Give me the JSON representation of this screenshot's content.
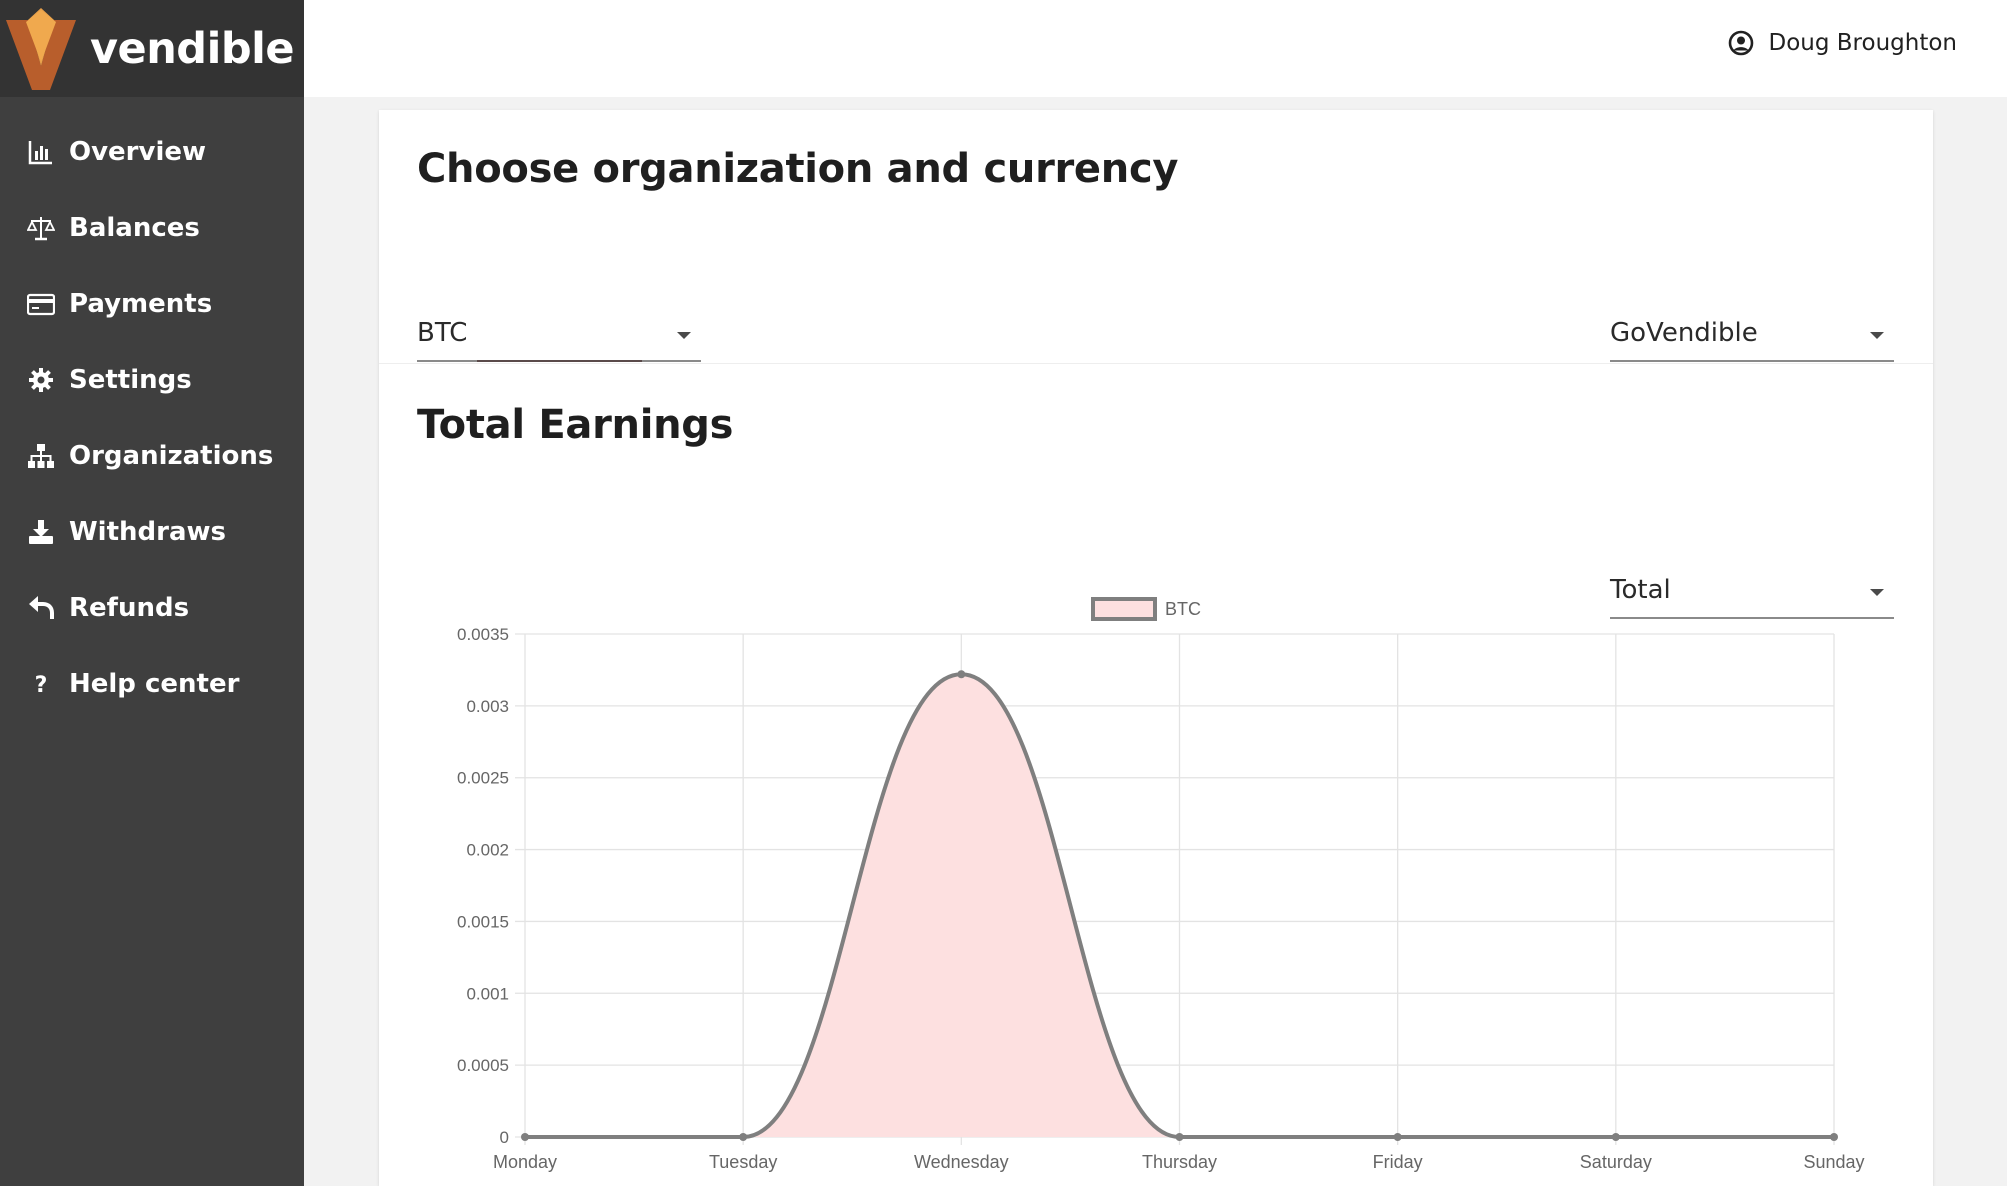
{
  "brand": {
    "name": "vendible",
    "logo_icon": "vendible-v-logo"
  },
  "sidebar": {
    "items": [
      {
        "label": "Overview",
        "icon": "bar-chart-icon"
      },
      {
        "label": "Balances",
        "icon": "scales-icon"
      },
      {
        "label": "Payments",
        "icon": "credit-card-icon"
      },
      {
        "label": "Settings",
        "icon": "gear-icon"
      },
      {
        "label": "Organizations",
        "icon": "sitemap-icon"
      },
      {
        "label": "Withdraws",
        "icon": "download-icon"
      },
      {
        "label": "Refunds",
        "icon": "reply-icon"
      },
      {
        "label": "Help center",
        "icon": "question-icon"
      }
    ]
  },
  "header": {
    "user_name": "Doug Broughton",
    "user_icon": "user-circle-icon"
  },
  "org_currency": {
    "title": "Choose organization and currency",
    "currency_value": "BTC",
    "organization_value": "GoVendible"
  },
  "earnings": {
    "title": "Total Earnings",
    "period_value": "Total"
  },
  "colors": {
    "sidebar_bg": "#3f3f3f",
    "brand_bg": "#333333",
    "logo_light": "#e8a04a",
    "logo_dark": "#b85e2c",
    "series_fill": "#fde0e0",
    "series_line": "#7f7f7f"
  },
  "chart_data": {
    "type": "area",
    "categories": [
      "Monday",
      "Tuesday",
      "Wednesday",
      "Thursday",
      "Friday",
      "Saturday",
      "Sunday"
    ],
    "series": [
      {
        "name": "BTC",
        "values": [
          0,
          0,
          0.00322,
          0,
          0,
          0,
          0
        ]
      }
    ],
    "ylim": [
      0,
      0.0035
    ],
    "yticks": [
      "0",
      "0.0005",
      "0.001",
      "0.0015",
      "0.002",
      "0.0025",
      "0.003",
      "0.0035"
    ],
    "legend": "top-center",
    "grid": true
  }
}
